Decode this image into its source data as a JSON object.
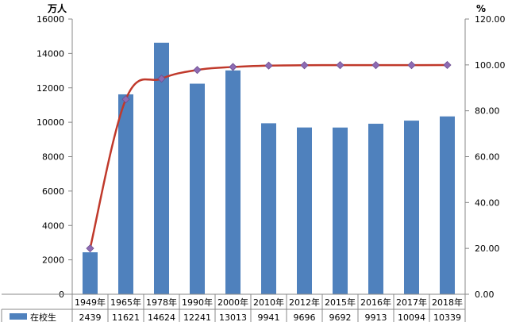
{
  "chart_data": {
    "type": "bar",
    "categories": [
      "1949年",
      "1965年",
      "1978年",
      "1990年",
      "2000年",
      "2010年",
      "2012年",
      "2015年",
      "2016年",
      "2017年",
      "2018年"
    ],
    "series": [
      {
        "name": "在校生",
        "type": "bar",
        "axis": "left",
        "color": "#4f81bd",
        "values": [
          2439,
          11621,
          14624,
          12241,
          13013,
          9941,
          9696,
          9692,
          9913,
          10094,
          10339
        ]
      },
      {
        "type": "line",
        "axis": "right",
        "color": "#c0392b",
        "marker_color": "#8e6bb3",
        "values": [
          20.0,
          85.0,
          94.0,
          97.8,
          99.1,
          99.7,
          99.85,
          99.9,
          99.9,
          99.9,
          99.95
        ]
      }
    ],
    "left_axis": {
      "unit": "万人",
      "min": 0,
      "max": 16000,
      "step": 2000,
      "ticks": [
        "0",
        "2000",
        "4000",
        "6000",
        "8000",
        "10000",
        "12000",
        "14000",
        "16000"
      ]
    },
    "right_axis": {
      "unit": "%",
      "min": 0,
      "max": 120,
      "step": 20,
      "ticks": [
        "0.00",
        "20.00",
        "40.00",
        "60.00",
        "80.00",
        "100.00",
        "120.00"
      ]
    },
    "table": {
      "row_label": "在校生",
      "values": [
        "2439",
        "11621",
        "14624",
        "12241",
        "13013",
        "9941",
        "9696",
        "9692",
        "9913",
        "10094",
        "10339"
      ]
    },
    "grid": false,
    "legend": "bottom-left"
  }
}
